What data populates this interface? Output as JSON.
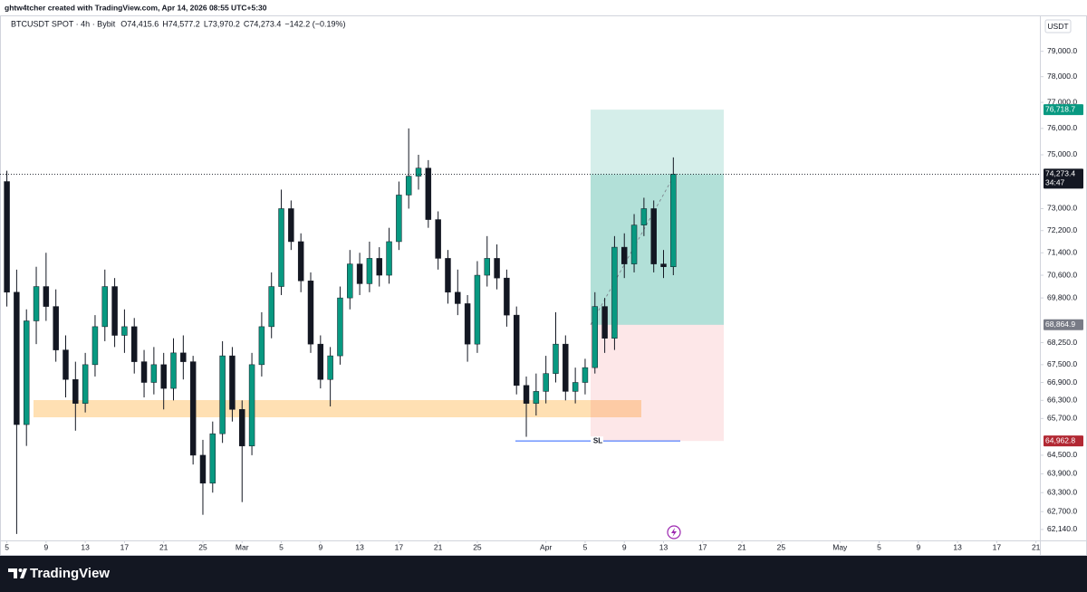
{
  "credit": "ghtw4tcher created with TradingView.com, Apr 14, 2026 08:55 UTC+5:30",
  "header": {
    "symbol": "BTCUSDT SPOT · 4h · Bybit",
    "ohlc": [
      {
        "key": "O",
        "value": "74,415.6"
      },
      {
        "key": "H",
        "value": "74,577.2"
      },
      {
        "key": "L",
        "value": "73,970.2"
      },
      {
        "key": "C",
        "value": "74,273.4"
      }
    ],
    "change": "−142.2 (−0.19%)"
  },
  "footer": {
    "brand": "TradingView"
  },
  "chart_data": {
    "type": "candlestick",
    "currency": "USDT",
    "log": true,
    "color_up": "#089981",
    "color_down": "#131722",
    "x": [
      4,
      5,
      6,
      7,
      8,
      9,
      10,
      11,
      12,
      13,
      14,
      15,
      16,
      17,
      18,
      19,
      20,
      21,
      22,
      23,
      24,
      25,
      26,
      27,
      28,
      29,
      30,
      31,
      32,
      33,
      34,
      35,
      36,
      37,
      38,
      39,
      40,
      41,
      42,
      43,
      44,
      45,
      46,
      47,
      48,
      49,
      50,
      51,
      52,
      53,
      54,
      55,
      56,
      57,
      58,
      59,
      60,
      61,
      62,
      63,
      64,
      65,
      66,
      67,
      68,
      69,
      70,
      71,
      72
    ],
    "open": [
      74000,
      70000,
      65500,
      69000,
      70200,
      69500,
      68000,
      67000,
      66200,
      67500,
      68800,
      70200,
      68500,
      68800,
      67600,
      66900,
      67500,
      66700,
      67900,
      67600,
      64500,
      63600,
      65200,
      67800,
      66000,
      64800,
      67500,
      68800,
      70200,
      73000,
      71800,
      70400,
      68200,
      67000,
      67800,
      69800,
      71000,
      70300,
      71200,
      70600,
      71800,
      73500,
      74200,
      74500,
      72600,
      71200,
      70000,
      69600,
      68200,
      70600,
      71200,
      70500,
      69200,
      66800,
      66200,
      66600,
      67200,
      68200,
      66600,
      66900,
      67400,
      69500,
      68400,
      71600,
      71000,
      72400,
      73000,
      71000,
      70900
    ],
    "high": [
      74400,
      70800,
      69400,
      70900,
      71400,
      70100,
      68500,
      67600,
      67900,
      69200,
      70800,
      70500,
      69400,
      69100,
      68000,
      68100,
      67900,
      68400,
      68500,
      67800,
      65000,
      65600,
      68300,
      68100,
      66300,
      67900,
      69300,
      70700,
      73700,
      73300,
      72100,
      70700,
      68500,
      68100,
      70200,
      71500,
      71400,
      71800,
      71600,
      72300,
      74000,
      76000,
      75000,
      74800,
      72900,
      71500,
      70800,
      69900,
      71100,
      72000,
      71700,
      70800,
      69500,
      67100,
      67200,
      67800,
      69300,
      68500,
      67400,
      67700,
      70000,
      69800,
      72000,
      72100,
      72800,
      73400,
      73300,
      71500,
      74900
    ],
    "low": [
      69500,
      62000,
      64800,
      68200,
      69000,
      67600,
      66400,
      65300,
      65900,
      67100,
      68300,
      68100,
      67900,
      67200,
      66400,
      66500,
      66000,
      66300,
      67000,
      64200,
      62600,
      63300,
      64900,
      65600,
      63000,
      64500,
      67100,
      68400,
      69900,
      71500,
      70000,
      67900,
      66700,
      66100,
      67500,
      69400,
      69900,
      70000,
      70200,
      70300,
      71500,
      73000,
      73700,
      72300,
      70800,
      69600,
      69200,
      67600,
      67900,
      70200,
      70100,
      68800,
      66500,
      65100,
      65800,
      66200,
      66900,
      66300,
      66200,
      66500,
      67200,
      67900,
      68000,
      70500,
      70700,
      72000,
      70700,
      70500,
      70600
    ],
    "close": [
      70000,
      65500,
      69000,
      70200,
      69500,
      68000,
      67000,
      66200,
      67500,
      68800,
      70200,
      68500,
      68800,
      67600,
      66900,
      67500,
      66700,
      67900,
      67600,
      64500,
      63600,
      65200,
      67800,
      66000,
      64800,
      67500,
      68800,
      70200,
      73000,
      71800,
      70400,
      68200,
      67000,
      67800,
      69800,
      71000,
      70300,
      71200,
      70600,
      71800,
      73500,
      74200,
      74500,
      72600,
      71200,
      70000,
      69600,
      68200,
      70600,
      71200,
      70500,
      69200,
      66800,
      66200,
      66600,
      67200,
      68200,
      66600,
      66900,
      67400,
      69500,
      68400,
      71600,
      71000,
      72400,
      73000,
      71000,
      70900,
      74273.4
    ],
    "xlim": [
      3.3,
      109.4
    ],
    "xticks": [
      {
        "value": 4,
        "label": "5"
      },
      {
        "value": 8,
        "label": "9"
      },
      {
        "value": 12,
        "label": "13"
      },
      {
        "value": 16,
        "label": "17"
      },
      {
        "value": 20,
        "label": "21"
      },
      {
        "value": 24,
        "label": "25"
      },
      {
        "value": 28,
        "label": "Mar"
      },
      {
        "value": 32,
        "label": "5"
      },
      {
        "value": 36,
        "label": "9"
      },
      {
        "value": 40,
        "label": "13"
      },
      {
        "value": 44,
        "label": "17"
      },
      {
        "value": 48,
        "label": "21"
      },
      {
        "value": 52,
        "label": "25"
      },
      {
        "value": 59,
        "label": "Apr"
      },
      {
        "value": 63,
        "label": "5"
      },
      {
        "value": 67,
        "label": "9"
      },
      {
        "value": 71,
        "label": "13"
      },
      {
        "value": 75,
        "label": "17"
      },
      {
        "value": 79,
        "label": "21"
      },
      {
        "value": 83,
        "label": "25"
      },
      {
        "value": 89,
        "label": "May"
      },
      {
        "value": 93,
        "label": "5"
      },
      {
        "value": 97,
        "label": "9"
      },
      {
        "value": 101,
        "label": "13"
      },
      {
        "value": 105,
        "label": "17"
      },
      {
        "value": 109,
        "label": "21"
      }
    ],
    "ylim": [
      61800,
      80400
    ],
    "yticks": [
      {
        "value": 79000,
        "label": "79,000.0"
      },
      {
        "value": 78000,
        "label": "78,000.0"
      },
      {
        "value": 77000,
        "label": "77,000.0"
      },
      {
        "value": 76000,
        "label": "76,000.0"
      },
      {
        "value": 75000,
        "label": "75,000.0"
      },
      {
        "value": 73000,
        "label": "73,000.0"
      },
      {
        "value": 72200,
        "label": "72,200.0"
      },
      {
        "value": 71400,
        "label": "71,400.0"
      },
      {
        "value": 70600,
        "label": "70,600.0"
      },
      {
        "value": 69800,
        "label": "69,800.0"
      },
      {
        "value": 68250,
        "label": "68,250.0"
      },
      {
        "value": 67500,
        "label": "67,500.0"
      },
      {
        "value": 66900,
        "label": "66,900.0"
      },
      {
        "value": 66300,
        "label": "66,300.0"
      },
      {
        "value": 65700,
        "label": "65,700.0"
      },
      {
        "value": 64500,
        "label": "64,500.0"
      },
      {
        "value": 63900,
        "label": "63,900.0"
      },
      {
        "value": 63300,
        "label": "63,300.0"
      },
      {
        "value": 62700,
        "label": "62,700.0"
      },
      {
        "value": 62140,
        "label": "62,140.0"
      }
    ],
    "price_tags": [
      {
        "value": 76718.7,
        "label": "76,718.7",
        "color": "#089981"
      },
      {
        "value": 74273.4,
        "label": "74,273.4",
        "color": "#131722",
        "countdown": "34:47"
      },
      {
        "value": 68864.9,
        "label": "68,864.9",
        "color": "#787b86"
      },
      {
        "value": 64962.8,
        "label": "64,962.8",
        "color": "#b22833"
      }
    ],
    "sl_label": "SL"
  }
}
